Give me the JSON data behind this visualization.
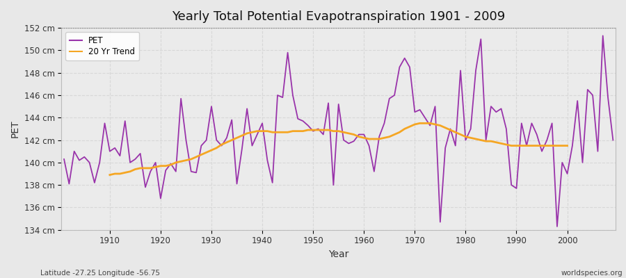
{
  "title": "Yearly Total Potential Evapotranspiration 1901 - 2009",
  "xlabel": "Year",
  "ylabel": "PET",
  "footnote_left": "Latitude -27.25 Longitude -56.75",
  "footnote_right": "worldspecies.org",
  "ylim": [
    134,
    152
  ],
  "ytick_step": 2,
  "pet_color": "#9933aa",
  "trend_color": "#f5a623",
  "bg_color": "#e8e8e8",
  "plot_bg_color": "#ebebeb",
  "grid_color": "#d8d8d8",
  "dotted_line_y": 152,
  "years": [
    1901,
    1902,
    1903,
    1904,
    1905,
    1906,
    1907,
    1908,
    1909,
    1910,
    1911,
    1912,
    1913,
    1914,
    1915,
    1916,
    1917,
    1918,
    1919,
    1920,
    1921,
    1922,
    1923,
    1924,
    1925,
    1926,
    1927,
    1928,
    1929,
    1930,
    1931,
    1932,
    1933,
    1934,
    1935,
    1936,
    1937,
    1938,
    1939,
    1940,
    1941,
    1942,
    1943,
    1944,
    1945,
    1946,
    1947,
    1948,
    1949,
    1950,
    1951,
    1952,
    1953,
    1954,
    1955,
    1956,
    1957,
    1958,
    1959,
    1960,
    1961,
    1962,
    1963,
    1964,
    1965,
    1966,
    1967,
    1968,
    1969,
    1970,
    1971,
    1972,
    1973,
    1974,
    1975,
    1976,
    1977,
    1978,
    1979,
    1980,
    1981,
    1982,
    1983,
    1984,
    1985,
    1986,
    1987,
    1988,
    1989,
    1990,
    1991,
    1992,
    1993,
    1994,
    1995,
    1996,
    1997,
    1998,
    1999,
    2000,
    2001,
    2002,
    2003,
    2004,
    2005,
    2006,
    2007,
    2008,
    2009
  ],
  "pet_values": [
    140.3,
    138.1,
    141.0,
    140.2,
    140.5,
    140.0,
    138.2,
    140.0,
    143.5,
    141.0,
    141.3,
    140.6,
    143.7,
    140.0,
    140.3,
    140.8,
    137.8,
    139.2,
    140.0,
    136.8,
    139.3,
    139.9,
    139.2,
    145.7,
    142.0,
    139.2,
    139.1,
    141.5,
    142.0,
    145.0,
    142.0,
    141.5,
    142.2,
    143.8,
    138.1,
    141.2,
    144.8,
    141.5,
    142.5,
    143.5,
    140.2,
    138.2,
    146.0,
    145.8,
    149.8,
    146.0,
    143.9,
    143.7,
    143.3,
    142.8,
    143.0,
    142.5,
    145.3,
    138.0,
    145.2,
    142.0,
    141.7,
    141.9,
    142.5,
    142.5,
    141.5,
    139.2,
    142.3,
    143.5,
    145.7,
    146.0,
    148.5,
    149.3,
    148.5,
    144.5,
    144.7,
    144.0,
    143.3,
    145.0,
    134.7,
    141.3,
    143.0,
    141.5,
    148.2,
    142.0,
    143.0,
    148.2,
    151.0,
    142.0,
    145.0,
    144.5,
    144.8,
    143.0,
    138.0,
    137.7,
    143.5,
    141.5,
    143.5,
    142.5,
    141.0,
    142.0,
    143.5,
    134.3,
    140.0,
    139.0,
    141.5,
    145.5,
    140.0,
    146.5,
    146.0,
    141.0,
    151.3,
    145.8,
    142.0
  ],
  "trend_years": [
    1910,
    1911,
    1912,
    1913,
    1914,
    1915,
    1916,
    1917,
    1918,
    1919,
    1920,
    1921,
    1922,
    1923,
    1924,
    1925,
    1926,
    1927,
    1928,
    1929,
    1930,
    1931,
    1932,
    1933,
    1934,
    1935,
    1936,
    1937,
    1938,
    1939,
    1940,
    1941,
    1942,
    1943,
    1944,
    1945,
    1946,
    1947,
    1948,
    1949,
    1950,
    1951,
    1952,
    1953,
    1954,
    1955,
    1956,
    1957,
    1958,
    1959,
    1960,
    1961,
    1962,
    1963,
    1964,
    1965,
    1966,
    1967,
    1968,
    1969,
    1970,
    1971,
    1972,
    1973,
    1974,
    1975,
    1976,
    1977,
    1978,
    1979,
    1980,
    1981,
    1982,
    1983,
    1984,
    1985,
    1986,
    1987,
    1988,
    1989,
    1990,
    1991,
    1992,
    1993,
    1994,
    1995,
    1996,
    1997,
    1998,
    1999,
    2000
  ],
  "trend_values": [
    138.9,
    139.0,
    139.0,
    139.1,
    139.2,
    139.4,
    139.5,
    139.5,
    139.5,
    139.6,
    139.7,
    139.7,
    139.8,
    140.0,
    140.1,
    140.2,
    140.3,
    140.5,
    140.7,
    140.9,
    141.1,
    141.3,
    141.6,
    141.8,
    142.0,
    142.2,
    142.4,
    142.6,
    142.7,
    142.8,
    142.8,
    142.8,
    142.7,
    142.7,
    142.7,
    142.7,
    142.8,
    142.8,
    142.8,
    142.9,
    142.9,
    142.9,
    142.9,
    142.9,
    142.8,
    142.8,
    142.7,
    142.6,
    142.5,
    142.3,
    142.2,
    142.1,
    142.1,
    142.1,
    142.2,
    142.3,
    142.5,
    142.7,
    143.0,
    143.2,
    143.4,
    143.5,
    143.5,
    143.5,
    143.4,
    143.3,
    143.1,
    142.9,
    142.7,
    142.5,
    142.3,
    142.2,
    142.1,
    142.0,
    141.9,
    141.9,
    141.8,
    141.7,
    141.6,
    141.5,
    141.5,
    141.5,
    141.5,
    141.5,
    141.5,
    141.5,
    141.5,
    141.5,
    141.5,
    141.5,
    141.5
  ]
}
